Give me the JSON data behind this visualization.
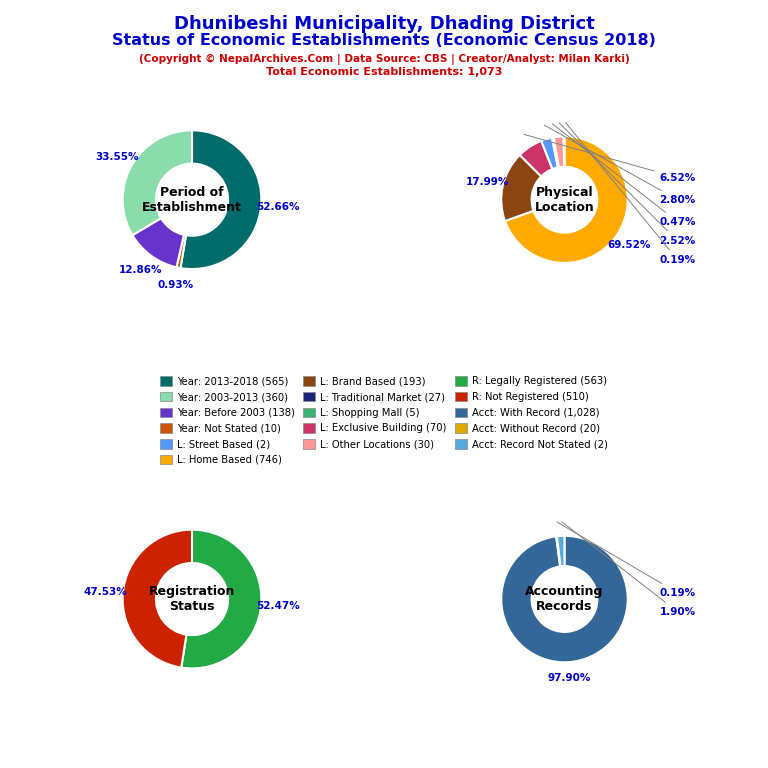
{
  "title_line1": "Dhunibeshi Municipality, Dhading District",
  "title_line2": "Status of Economic Establishments (Economic Census 2018)",
  "subtitle": "(Copyright © NepalArchives.Com | Data Source: CBS | Creator/Analyst: Milan Karki)",
  "subtitle2": "Total Economic Establishments: 1,073",
  "title_color": "#0000CC",
  "subtitle_color": "#CC0000",
  "pie1_label": "Period of\nEstablishment",
  "pie1_values": [
    52.66,
    0.93,
    12.86,
    33.55
  ],
  "pie1_colors": [
    "#006B6B",
    "#CC5500",
    "#6633CC",
    "#88DDAA"
  ],
  "pie1_pct": [
    "52.66%",
    "0.93%",
    "12.86%",
    "33.55%"
  ],
  "pie2_label": "Physical\nLocation",
  "pie2_values": [
    69.52,
    17.99,
    6.52,
    2.8,
    0.47,
    2.52,
    0.19
  ],
  "pie2_colors": [
    "#FFAA00",
    "#8B4513",
    "#CC3366",
    "#5599FF",
    "#1A237E",
    "#FF9999",
    "#3CB371"
  ],
  "pie2_pct": [
    "69.52%",
    "17.99%",
    "6.52%",
    "2.80%",
    "0.47%",
    "2.52%",
    "0.19%"
  ],
  "pie3_label": "Registration\nStatus",
  "pie3_values": [
    52.47,
    47.53
  ],
  "pie3_colors": [
    "#22AA44",
    "#CC2200"
  ],
  "pie3_pct": [
    "52.47%",
    "47.53%"
  ],
  "pie4_label": "Accounting\nRecords",
  "pie4_values": [
    97.9,
    0.19,
    1.9
  ],
  "pie4_colors": [
    "#336699",
    "#DDAA00",
    "#55AADD"
  ],
  "pie4_pct": [
    "97.90%",
    "0.19%",
    "1.90%"
  ],
  "legend_items": [
    {
      "label": "Year: 2013-2018 (565)",
      "color": "#006B6B"
    },
    {
      "label": "Year: 2003-2013 (360)",
      "color": "#88DDAA"
    },
    {
      "label": "Year: Before 2003 (138)",
      "color": "#6633CC"
    },
    {
      "label": "Year: Not Stated (10)",
      "color": "#CC5500"
    },
    {
      "label": "L: Street Based (2)",
      "color": "#5599FF"
    },
    {
      "label": "L: Home Based (746)",
      "color": "#FFAA00"
    },
    {
      "label": "L: Brand Based (193)",
      "color": "#8B4513"
    },
    {
      "label": "L: Traditional Market (27)",
      "color": "#1A237E"
    },
    {
      "label": "L: Shopping Mall (5)",
      "color": "#3CB371"
    },
    {
      "label": "L: Exclusive Building (70)",
      "color": "#CC3366"
    },
    {
      "label": "L: Other Locations (30)",
      "color": "#FF9999"
    },
    {
      "label": "R: Legally Registered (563)",
      "color": "#22AA44"
    },
    {
      "label": "R: Not Registered (510)",
      "color": "#CC2200"
    },
    {
      "label": "Acct: With Record (1,028)",
      "color": "#336699"
    },
    {
      "label": "Acct: Without Record (20)",
      "color": "#DDAA00"
    },
    {
      "label": "Acct: Record Not Stated (2)",
      "color": "#55AADD"
    }
  ],
  "label_color": "#0000CC"
}
